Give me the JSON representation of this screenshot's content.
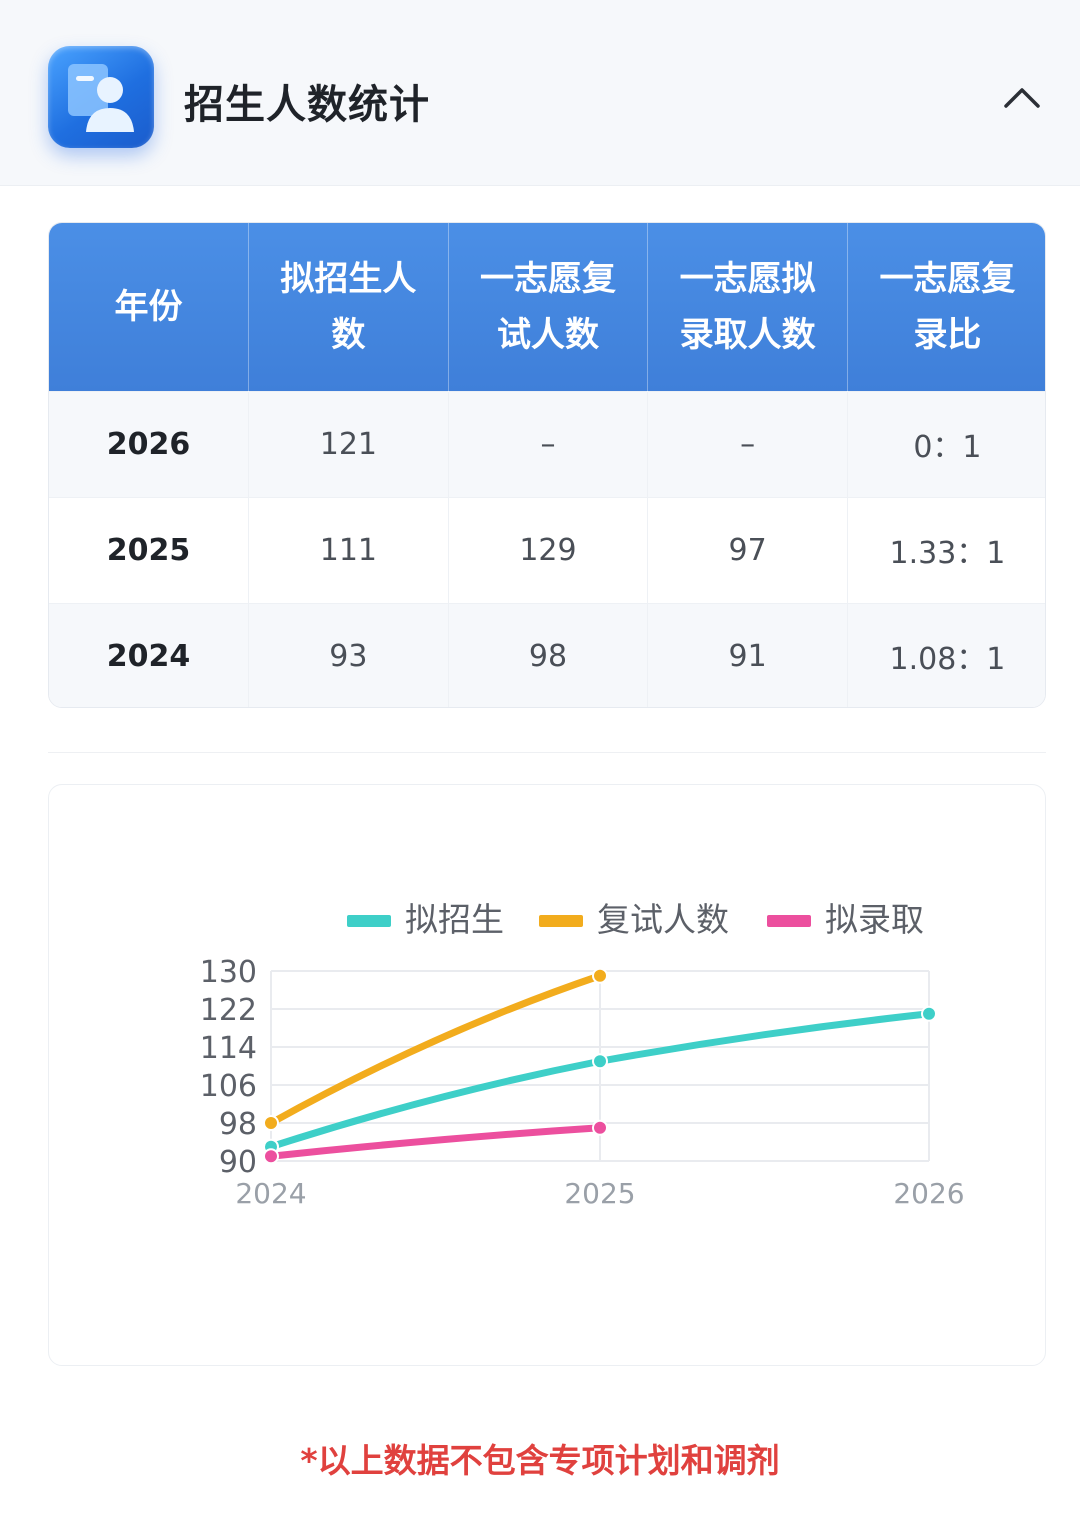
{
  "header": {
    "title": "招生人数统计",
    "icon": "admission-profile-icon",
    "collapse_icon": "chevron-up-icon"
  },
  "table": {
    "headers": [
      "年份",
      "拟招生人数",
      "一志愿复试人数",
      "一志愿拟录取人数",
      "一志愿复录比"
    ],
    "rows": [
      [
        "2026",
        "121",
        "–",
        "–",
        "0：1"
      ],
      [
        "2025",
        "111",
        "129",
        "97",
        "1.33：1"
      ],
      [
        "2024",
        "93",
        "98",
        "91",
        "1.08：1"
      ]
    ]
  },
  "chart_data": {
    "type": "line",
    "title": "",
    "xlabel": "",
    "ylabel": "",
    "x": [
      "2024",
      "2025",
      "2026"
    ],
    "yticks": [
      "90",
      "98",
      "106",
      "114",
      "122",
      "130"
    ],
    "ylim": [
      90,
      130
    ],
    "legend_position": "top",
    "series": [
      {
        "name": "拟招生",
        "color": "#3ecfc8",
        "values": [
          93,
          111,
          121
        ]
      },
      {
        "name": "复试人数",
        "color": "#f2ac1d",
        "values": [
          98,
          129,
          null
        ]
      },
      {
        "name": "拟录取",
        "color": "#ec4f9e",
        "values": [
          91,
          97,
          null
        ]
      }
    ]
  },
  "footnote": "*以上数据不包含专项计划和调剂"
}
